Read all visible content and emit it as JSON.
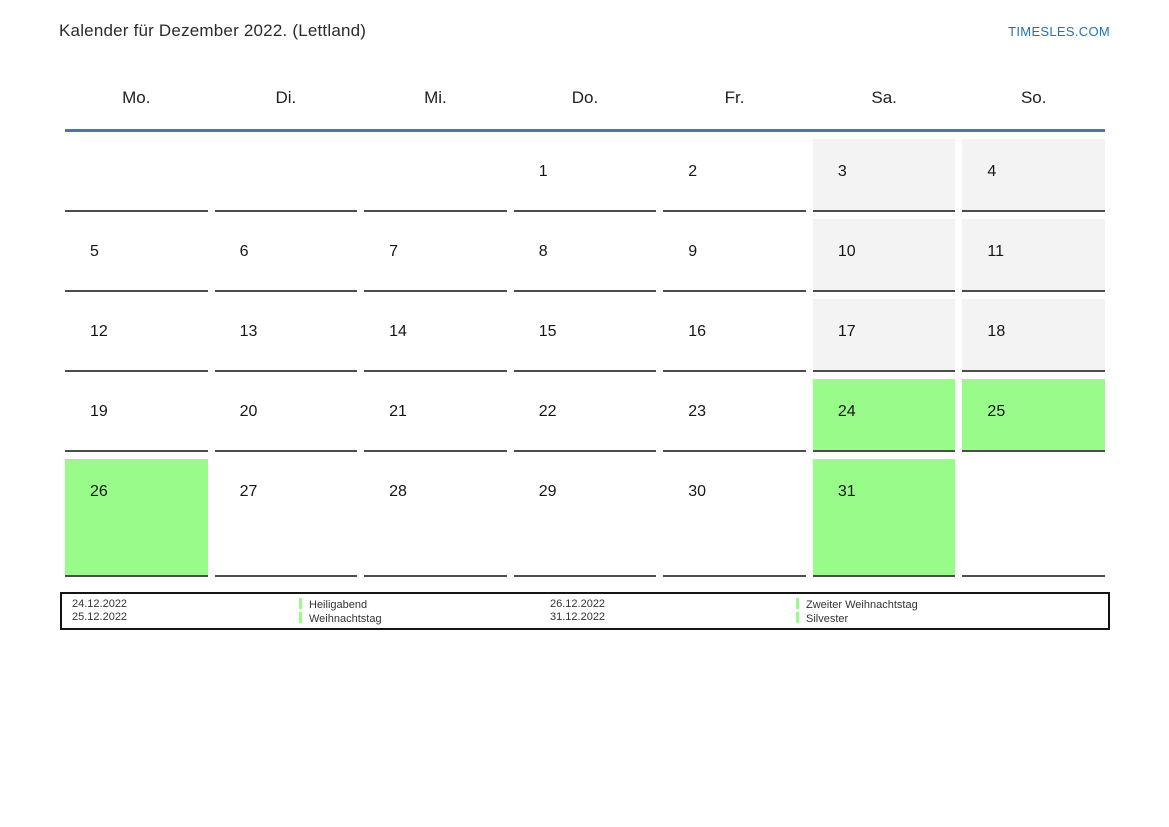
{
  "title": "Kalender für Dezember 2022. (Lettland)",
  "brand": {
    "label": "TIMESLES.COM"
  },
  "weekdays": [
    "Mo.",
    "Di.",
    "Mi.",
    "Do.",
    "Fr.",
    "Sa.",
    "So."
  ],
  "colors": {
    "brand_blue": "#1b74b9",
    "header_rule": "#50759e",
    "cell_border": "#4c4c4c",
    "weekend_bg": "#f3f3f3",
    "holiday_bg": "#98fb8a"
  },
  "month": "Dezember",
  "year": "2022",
  "country": "Lettland",
  "weeks": [
    [
      {
        "day": "",
        "type": "empty"
      },
      {
        "day": "",
        "type": "empty"
      },
      {
        "day": "",
        "type": "empty"
      },
      {
        "day": "1",
        "type": "weekday"
      },
      {
        "day": "2",
        "type": "weekday"
      },
      {
        "day": "3",
        "type": "weekend"
      },
      {
        "day": "4",
        "type": "weekend"
      }
    ],
    [
      {
        "day": "5",
        "type": "weekday"
      },
      {
        "day": "6",
        "type": "weekday"
      },
      {
        "day": "7",
        "type": "weekday"
      },
      {
        "day": "8",
        "type": "weekday"
      },
      {
        "day": "9",
        "type": "weekday"
      },
      {
        "day": "10",
        "type": "weekend"
      },
      {
        "day": "11",
        "type": "weekend"
      }
    ],
    [
      {
        "day": "12",
        "type": "weekday"
      },
      {
        "day": "13",
        "type": "weekday"
      },
      {
        "day": "14",
        "type": "weekday"
      },
      {
        "day": "15",
        "type": "weekday"
      },
      {
        "day": "16",
        "type": "weekday"
      },
      {
        "day": "17",
        "type": "weekend"
      },
      {
        "day": "18",
        "type": "weekend"
      }
    ],
    [
      {
        "day": "19",
        "type": "weekday"
      },
      {
        "day": "20",
        "type": "weekday"
      },
      {
        "day": "21",
        "type": "weekday"
      },
      {
        "day": "22",
        "type": "weekday"
      },
      {
        "day": "23",
        "type": "weekday"
      },
      {
        "day": "24",
        "type": "holiday"
      },
      {
        "day": "25",
        "type": "holiday"
      }
    ],
    [
      {
        "day": "26",
        "type": "holiday"
      },
      {
        "day": "27",
        "type": "weekday"
      },
      {
        "day": "28",
        "type": "weekday"
      },
      {
        "day": "29",
        "type": "weekday"
      },
      {
        "day": "30",
        "type": "weekday"
      },
      {
        "day": "31",
        "type": "holiday"
      },
      {
        "day": "",
        "type": "empty"
      }
    ]
  ],
  "legend": {
    "columns": [
      {
        "type": "dates",
        "items": [
          "24.12.2022",
          "25.12.2022"
        ]
      },
      {
        "type": "labels",
        "items": [
          "Heiligabend",
          "Weihnachtstag"
        ]
      },
      {
        "type": "dates",
        "items": [
          "26.12.2022",
          "31.12.2022"
        ]
      },
      {
        "type": "labels",
        "items": [
          "Zweiter Weihnachtstag",
          "Silvester"
        ]
      }
    ]
  }
}
